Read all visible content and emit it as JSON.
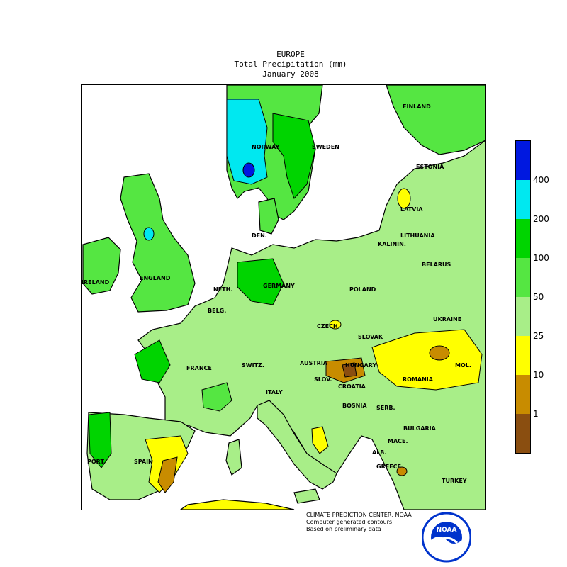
{
  "header": {
    "title": "EUROPE",
    "subtitle": "Total Precipitation (mm)",
    "period": "January 2008"
  },
  "map": {
    "countries": [
      {
        "name": "FINLAND"
      },
      {
        "name": "NORWAY"
      },
      {
        "name": "SWEDEN"
      },
      {
        "name": "ESTONIA"
      },
      {
        "name": "LATVIA"
      },
      {
        "name": "LITHUANIA"
      },
      {
        "name": "KALININ."
      },
      {
        "name": "BELARUS"
      },
      {
        "name": "DEN."
      },
      {
        "name": "IRELAND"
      },
      {
        "name": "ENGLAND"
      },
      {
        "name": "NETH."
      },
      {
        "name": "BELG."
      },
      {
        "name": "GERMANY"
      },
      {
        "name": "POLAND"
      },
      {
        "name": "UKRAINE"
      },
      {
        "name": "CZECH"
      },
      {
        "name": "SLOVAK"
      },
      {
        "name": "FRANCE"
      },
      {
        "name": "SWITZ."
      },
      {
        "name": "AUSTRIA"
      },
      {
        "name": "HUNGARY"
      },
      {
        "name": "ROMANIA"
      },
      {
        "name": "MOL."
      },
      {
        "name": "SLOV."
      },
      {
        "name": "CROATIA"
      },
      {
        "name": "BOSNIA"
      },
      {
        "name": "SERB."
      },
      {
        "name": "ITALY"
      },
      {
        "name": "BULGARIA"
      },
      {
        "name": "MACE."
      },
      {
        "name": "ALB."
      },
      {
        "name": "GREECE"
      },
      {
        "name": "PORT."
      },
      {
        "name": "SPAIN"
      },
      {
        "name": "TURKEY"
      }
    ]
  },
  "legend": {
    "bins": [
      {
        "color": "#0018e0"
      },
      {
        "color": "#00e8f0"
      },
      {
        "color": "#00d400"
      },
      {
        "color": "#55e642"
      },
      {
        "color": "#a8ee88"
      },
      {
        "color": "#ffff00"
      },
      {
        "color": "#c88c00"
      },
      {
        "color": "#8a4e10"
      }
    ],
    "labels": [
      "400",
      "200",
      "100",
      "50",
      "25",
      "10",
      "1"
    ]
  },
  "colors": {
    "water": "#ffffff",
    "border": "#000000"
  },
  "footer": {
    "line1": "CLIMATE PREDICTION CENTER, NOAA",
    "line2": "Computer generated contours",
    "line3": "Based on preliminary data",
    "logo_text": "NOAA",
    "logo_icon": "noaa-seal-icon"
  }
}
